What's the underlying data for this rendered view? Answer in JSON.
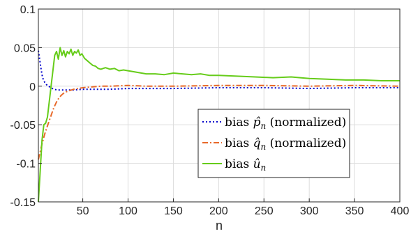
{
  "chart_data": {
    "type": "line",
    "xlabel": "n",
    "ylabel": "",
    "title": "",
    "xlim": [
      1,
      400
    ],
    "ylim": [
      -0.15,
      0.1
    ],
    "xticks": [
      50,
      100,
      150,
      200,
      250,
      300,
      350,
      400
    ],
    "xtick_labels": [
      "50",
      "100",
      "150",
      "200",
      "250",
      "300",
      "350",
      "400"
    ],
    "yticks": [
      -0.15,
      -0.1,
      -0.05,
      0,
      0.05,
      0.1
    ],
    "ytick_labels": [
      "-0.15",
      "-0.1",
      "-0.05",
      "0",
      "0.05",
      "0.1"
    ],
    "grid": true,
    "legend_position": "center-right",
    "series": [
      {
        "name": "bias p̂n (normalized)",
        "legend_prefix": "bias ",
        "legend_symbol": "p̂",
        "legend_sub": "n",
        "legend_suffix": " (normalized)",
        "color": "#0000cc",
        "dash": "dotted",
        "x": [
          1,
          2,
          3,
          4,
          5,
          6,
          8,
          10,
          12,
          15,
          18,
          22,
          26,
          30,
          40,
          50,
          60,
          80,
          100,
          150,
          200,
          250,
          300,
          350,
          400
        ],
        "y": [
          0.046,
          0.038,
          0.03,
          0.022,
          0.015,
          0.01,
          0.005,
          0.002,
          0.0,
          -0.002,
          -0.004,
          -0.005,
          -0.005,
          -0.005,
          -0.005,
          -0.004,
          -0.004,
          -0.004,
          -0.003,
          -0.003,
          -0.002,
          -0.002,
          -0.003,
          -0.002,
          -0.002
        ]
      },
      {
        "name": "bias q̂n (normalized)",
        "legend_prefix": "bias ",
        "legend_symbol": "q̂",
        "legend_sub": "n",
        "legend_suffix": " (normalized)",
        "color": "#e8692a",
        "dash": "dashdot",
        "x": [
          1,
          3,
          5,
          8,
          10,
          12,
          15,
          18,
          22,
          26,
          30,
          35,
          40,
          50,
          60,
          70,
          80,
          100,
          120,
          150,
          200,
          250,
          300,
          350,
          400
        ],
        "y": [
          -0.095,
          -0.085,
          -0.075,
          -0.062,
          -0.055,
          -0.048,
          -0.038,
          -0.028,
          -0.018,
          -0.012,
          -0.008,
          -0.006,
          -0.004,
          -0.002,
          -0.001,
          0.0,
          0.0,
          0.001,
          0.0,
          0.0,
          0.001,
          0.001,
          0.0,
          0.001,
          0.0
        ]
      },
      {
        "name": "bias ûn",
        "legend_prefix": "bias ",
        "legend_symbol": "û",
        "legend_sub": "n",
        "legend_suffix": "",
        "color": "#66cc1a",
        "dash": "solid",
        "x": [
          1,
          3,
          5,
          7,
          9,
          11,
          13,
          15,
          17,
          19,
          21,
          23,
          25,
          27,
          29,
          31,
          33,
          35,
          37,
          39,
          41,
          43,
          45,
          47,
          49,
          52,
          55,
          58,
          61,
          64,
          67,
          70,
          75,
          80,
          85,
          90,
          95,
          100,
          110,
          120,
          130,
          140,
          150,
          160,
          170,
          180,
          190,
          200,
          220,
          240,
          260,
          280,
          300,
          320,
          340,
          360,
          380,
          400
        ],
        "y": [
          -0.15,
          -0.11,
          -0.07,
          -0.05,
          -0.048,
          -0.04,
          -0.02,
          0.0,
          0.02,
          0.04,
          0.045,
          0.035,
          0.05,
          0.04,
          0.046,
          0.038,
          0.045,
          0.042,
          0.048,
          0.04,
          0.045,
          0.043,
          0.047,
          0.04,
          0.042,
          0.036,
          0.033,
          0.03,
          0.027,
          0.026,
          0.023,
          0.022,
          0.024,
          0.022,
          0.023,
          0.02,
          0.021,
          0.02,
          0.018,
          0.016,
          0.016,
          0.015,
          0.017,
          0.016,
          0.015,
          0.016,
          0.014,
          0.014,
          0.013,
          0.012,
          0.011,
          0.012,
          0.01,
          0.009,
          0.008,
          0.008,
          0.007,
          0.007
        ]
      }
    ]
  }
}
